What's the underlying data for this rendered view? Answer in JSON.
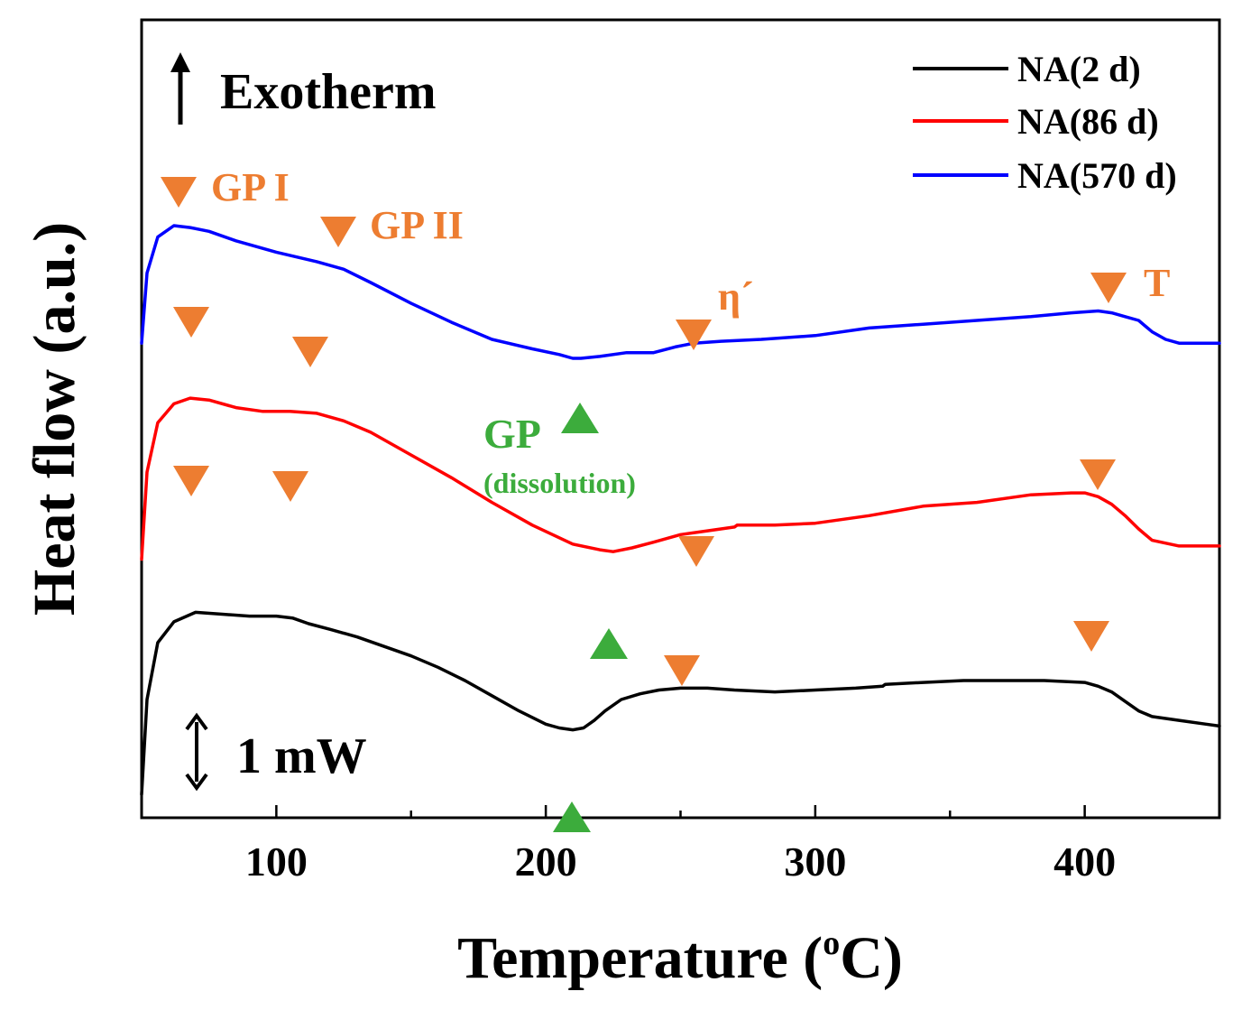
{
  "chart_data": {
    "type": "line",
    "xlabel": "Temperature (",
    "xlabel_unit_sup": "o",
    "xlabel_unit_tail": "C)",
    "ylabel": "Heat flow (a.u.)",
    "xlim": [
      50,
      450
    ],
    "x_ticks": [
      100,
      200,
      300,
      400
    ],
    "x_tick_labels": [
      "100",
      "200",
      "300",
      "400"
    ],
    "y_ticks_shown": false,
    "grid": false,
    "legend_position": "top-right",
    "colors": {
      "orange": "#ed7d31",
      "green": "#3cac3c"
    },
    "series": [
      {
        "name": "NA(2 d)",
        "color": "#000000",
        "x": [
          50,
          52,
          56,
          62,
          70,
          80,
          90,
          100,
          106,
          112,
          120,
          130,
          140,
          150,
          160,
          170,
          180,
          190,
          200,
          205,
          210,
          214,
          218,
          222,
          228,
          235,
          242,
          250,
          260,
          270,
          285,
          300,
          315,
          325,
          326,
          340,
          355,
          370,
          385,
          400,
          405,
          410,
          415,
          420,
          425,
          435,
          445,
          450
        ],
        "y": [
          0.0,
          0.5,
          0.8,
          0.91,
          0.96,
          0.95,
          0.94,
          0.94,
          0.93,
          0.9,
          0.87,
          0.83,
          0.78,
          0.73,
          0.67,
          0.6,
          0.52,
          0.44,
          0.37,
          0.35,
          0.34,
          0.35,
          0.39,
          0.44,
          0.5,
          0.53,
          0.55,
          0.56,
          0.56,
          0.55,
          0.54,
          0.55,
          0.56,
          0.57,
          0.58,
          0.59,
          0.6,
          0.6,
          0.6,
          0.59,
          0.57,
          0.54,
          0.49,
          0.44,
          0.41,
          0.39,
          0.37,
          0.36
        ]
      },
      {
        "name": "NA(86 d)",
        "color": "#ff0000",
        "x": [
          50,
          52,
          56,
          62,
          68,
          75,
          85,
          95,
          105,
          115,
          125,
          135,
          150,
          165,
          180,
          195,
          210,
          220,
          225,
          232,
          240,
          250,
          260,
          270,
          271,
          285,
          300,
          320,
          340,
          360,
          380,
          395,
          400,
          405,
          410,
          415,
          420,
          425,
          435,
          445,
          450
        ],
        "y": [
          1.24,
          1.7,
          1.96,
          2.06,
          2.09,
          2.08,
          2.04,
          2.02,
          2.02,
          2.01,
          1.97,
          1.91,
          1.79,
          1.67,
          1.54,
          1.42,
          1.32,
          1.29,
          1.28,
          1.3,
          1.33,
          1.37,
          1.39,
          1.41,
          1.42,
          1.42,
          1.43,
          1.47,
          1.52,
          1.54,
          1.58,
          1.59,
          1.59,
          1.57,
          1.53,
          1.47,
          1.4,
          1.34,
          1.31,
          1.31,
          1.31
        ]
      },
      {
        "name": "NA(570 d)",
        "color": "#0000ff",
        "x": [
          50,
          52,
          56,
          62,
          68,
          75,
          85,
          100,
          115,
          125,
          135,
          150,
          165,
          180,
          195,
          205,
          210,
          213,
          220,
          230,
          240,
          248,
          255,
          265,
          280,
          300,
          320,
          340,
          360,
          380,
          395,
          405,
          410,
          415,
          420,
          425,
          430,
          435,
          445,
          450
        ],
        "y": [
          2.38,
          2.75,
          2.94,
          3.0,
          2.99,
          2.97,
          2.92,
          2.86,
          2.81,
          2.77,
          2.7,
          2.59,
          2.49,
          2.4,
          2.35,
          2.32,
          2.3,
          2.3,
          2.31,
          2.33,
          2.33,
          2.36,
          2.38,
          2.39,
          2.4,
          2.42,
          2.46,
          2.48,
          2.5,
          2.52,
          2.54,
          2.55,
          2.54,
          2.52,
          2.5,
          2.44,
          2.4,
          2.38,
          2.38,
          2.38
        ]
      }
    ],
    "annotations": {
      "exotherm_label": "Exotherm",
      "scale_label": "1 mW",
      "label_gp1": "GP I",
      "label_gp2": "GP II",
      "label_eta": "η´",
      "label_t": "T",
      "label_gp_green": "GP",
      "label_dissolution": "(dissolution)"
    }
  }
}
